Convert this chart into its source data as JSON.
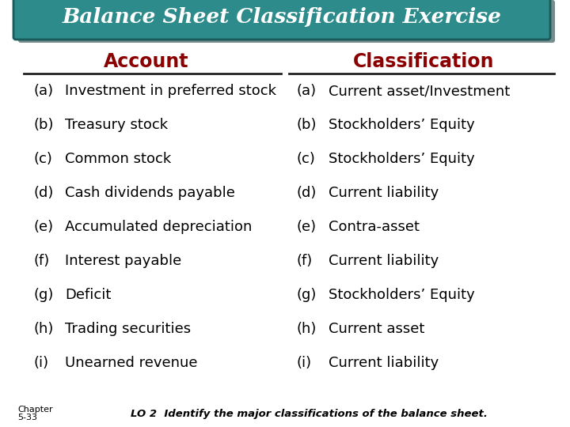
{
  "title": "Balance Sheet Classification Exercise",
  "title_bg_color": "#2E8B8B",
  "title_text_color": "#FFFFFF",
  "header_color": "#8B0000",
  "col_header_left": "Account",
  "col_header_right": "Classification",
  "account_labels": [
    "(a)",
    "(b)",
    "(c)",
    "(d)",
    "(e)",
    "(f)",
    "(g)",
    "(h)",
    "(i)"
  ],
  "account_texts": [
    "Investment in preferred stock",
    "Treasury stock",
    "Common stock",
    "Cash dividends payable",
    "Accumulated depreciation",
    "Interest payable",
    "Deficit",
    "Trading securities",
    "Unearned revenue"
  ],
  "class_labels": [
    "(a)",
    "(b)",
    "(c)",
    "(d)",
    "(e)",
    "(f)",
    "(g)",
    "(h)",
    "(i)"
  ],
  "class_texts": [
    "Current asset/Investment",
    "Stockholders’ Equity",
    "Stockholders’ Equity",
    "Current liability",
    "Contra-asset",
    "Current liability",
    "Stockholders’ Equity",
    "Current asset",
    "Current liability"
  ],
  "label_color": "#000000",
  "body_text_color": "#000000",
  "footer_chapter_line1": "Chapter",
  "footer_chapter_line2": "5-33",
  "footer_note": "LO 2  Identify the major classifications of the balance sheet.",
  "footer_text_color": "#000000",
  "bg_color": "#FFFFFF",
  "title_shadow_color": "#1a4040",
  "banner_edge_color": "#1a5a5a"
}
